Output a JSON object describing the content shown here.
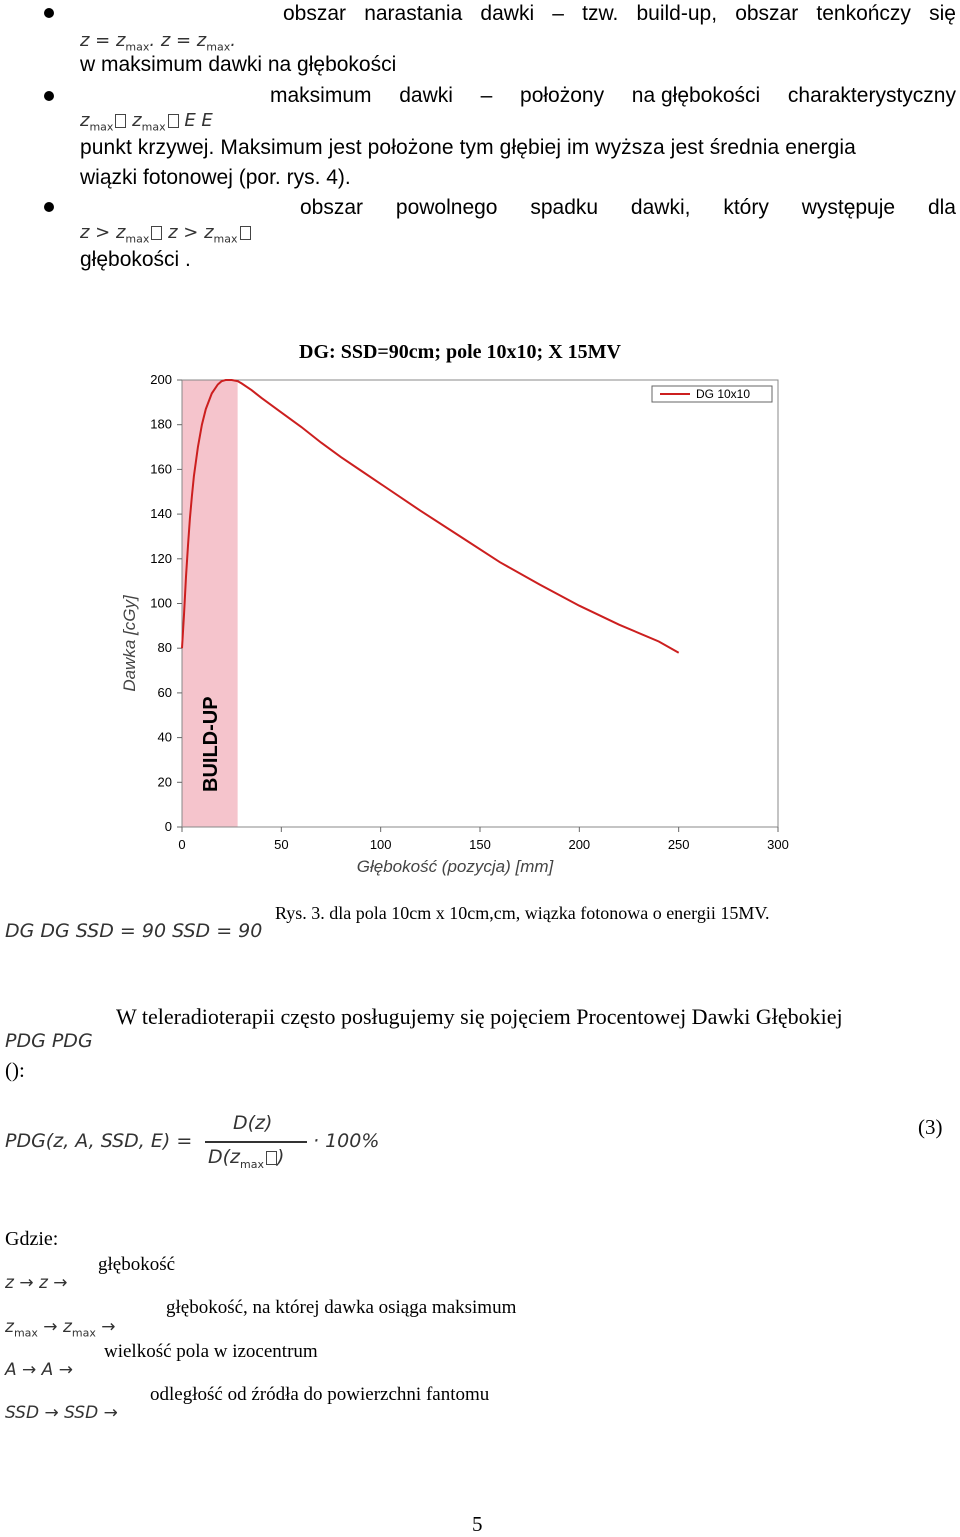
{
  "bullets": [
    {
      "line1": [
        "obszar",
        "narastania",
        "dawki",
        "–",
        "tzw.",
        "build-up,",
        "obszar",
        "tenkończy",
        "się"
      ],
      "math": [
        "z = z",
        "max",
        ". z = z",
        "max",
        "."
      ],
      "line2": "w maksimum dawki na głębokości"
    },
    {
      "line1": [
        "maksimum",
        "dawki",
        "–",
        "położony",
        "na głębokości",
        "charakterystyczny"
      ],
      "math": [
        "z",
        "max",
        "z",
        "max",
        "E",
        "E"
      ],
      "line2": "punkt krzywej. Maksimum jest położone tym głębiej im wyższa jest średnia energia",
      "line3": "wiązki fotonowej (por. rys. 4)."
    },
    {
      "line1": [
        "obszar",
        "powolnego",
        "spadku",
        "dawki,",
        "który",
        "występuje",
        "dla"
      ],
      "math": [
        "z > z",
        "max",
        "z > z",
        "max"
      ],
      "line2": "głębokości ."
    }
  ],
  "chart_data": {
    "type": "line",
    "title": "DG: SSD=90cm; pole 10x10; X 15MV",
    "xlabel": "Głębokość (pozycja) [mm]",
    "ylabel": "Dawka [cGy]",
    "xlim": [
      0,
      300
    ],
    "ylim": [
      0,
      200
    ],
    "xticks": [
      "0",
      "50",
      "100",
      "150",
      "200",
      "250",
      "300"
    ],
    "yticks": [
      "0",
      "20",
      "40",
      "60",
      "80",
      "100",
      "120",
      "140",
      "160",
      "180",
      "200"
    ],
    "grid": false,
    "legend_position": "top-right",
    "build_up_region": {
      "label": "BUILD-UP",
      "x_range": [
        0,
        28
      ],
      "color": "#f5c4cc"
    },
    "series": [
      {
        "name": "DG 10x10",
        "color": "#cc1f1f",
        "x": [
          0,
          1,
          2,
          3,
          4,
          5,
          6,
          8,
          10,
          12,
          15,
          18,
          20,
          22,
          25,
          28,
          30,
          35,
          40,
          50,
          60,
          70,
          80,
          90,
          100,
          120,
          140,
          160,
          180,
          200,
          220,
          240,
          250
        ],
        "y": [
          80,
          95,
          112,
          126,
          138,
          148,
          157,
          170,
          180,
          187,
          194,
          198,
          199.5,
          200,
          200,
          199.5,
          198.5,
          195.5,
          192,
          185.5,
          179,
          172,
          165.5,
          159.5,
          153.5,
          141.5,
          130,
          118.5,
          108.5,
          99,
          90.5,
          83,
          78
        ]
      }
    ]
  },
  "caption": {
    "math": "DG DG SSD = 90 SSD = 90",
    "text": "Rys. 3.  dla pola 10cm x 10cm,cm, wiązka fotonowa o energii 15MV."
  },
  "paragraph": {
    "math": "PDG PDG",
    "text": "W teleradioterapii często posługujemy się pojęciem Procentowej Dawki Głębokiej",
    "tail": "():"
  },
  "formula": {
    "lhs": "PDG(z, A, SSD, E) =",
    "numerator": "D(z)",
    "denominator_pre": "D(z",
    "denominator_sub": "max",
    "denominator_post": ")",
    "factor": "· 100%",
    "number": "(3)"
  },
  "definitions": {
    "heading": "Gdzie:",
    "items": [
      {
        "math": "z → z →",
        "text": "głębokość"
      },
      {
        "math_a": "z",
        "math_sub": "max",
        "math_b": " → z",
        "math_sub2": "max",
        "math_c": " →",
        "text": "głębokość, na której dawka osiąga maksimum"
      },
      {
        "math": "A → A →",
        "text": "wielkość pola w izocentrum"
      },
      {
        "math": "SSD → SSD →",
        "text": "odległość od źródła do powierzchni fantomu"
      }
    ]
  },
  "page_number": "5"
}
